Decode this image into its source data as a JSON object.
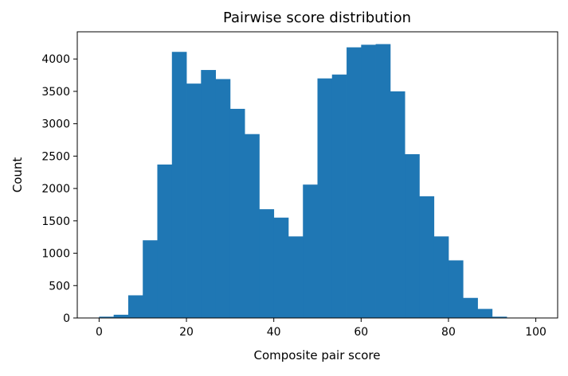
{
  "chart_data": {
    "type": "bar",
    "title": "Pairwise score distribution",
    "xlabel": "Composite pair score",
    "ylabel": "Count",
    "xlim": [
      -5,
      105
    ],
    "ylim": [
      0,
      4420
    ],
    "x_ticks": [
      0,
      20,
      40,
      60,
      80,
      100
    ],
    "y_ticks": [
      0,
      500,
      1000,
      1500,
      2000,
      2500,
      3000,
      3500,
      4000
    ],
    "bin_edges": [
      0,
      3.33,
      6.67,
      10,
      13.33,
      16.67,
      20,
      23.33,
      26.67,
      30,
      33.33,
      36.67,
      40,
      43.33,
      46.67,
      50,
      53.33,
      56.67,
      60,
      63.33,
      66.67,
      70,
      73.33,
      76.67,
      80,
      83.33,
      86.67,
      90,
      93.33,
      96.67,
      100
    ],
    "values": [
      20,
      50,
      350,
      1200,
      2370,
      4110,
      3620,
      3830,
      3690,
      3230,
      2840,
      1680,
      1550,
      1260,
      2060,
      3700,
      3760,
      4180,
      4220,
      4230,
      3500,
      2530,
      1880,
      1260,
      890,
      310,
      140,
      20,
      5,
      0
    ],
    "bar_color": "#1f77b4",
    "grid": false,
    "legend": "none"
  }
}
